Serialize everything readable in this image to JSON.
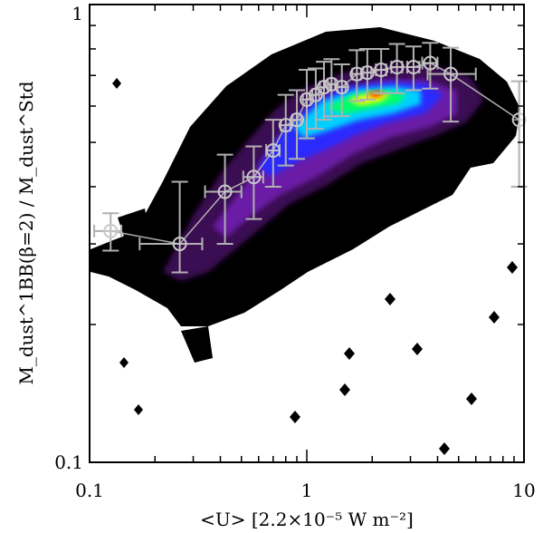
{
  "chart_data": {
    "type": "scatter",
    "title": "",
    "xlabel": "<U> [2.2×10⁻⁵ W m⁻²]",
    "ylabel": "M_dust^1BB(β=2) / M_dust^Std",
    "xscale": "log",
    "yscale": "log",
    "xlim": [
      0.1,
      10
    ],
    "ylim": [
      0.1,
      1
    ],
    "x_tick_labels": [
      "0.1",
      "1",
      "10"
    ],
    "y_tick_labels": [
      "0.1",
      "1"
    ],
    "grid": false,
    "legend": "none",
    "density_colors": [
      "#000000",
      "#3a0a52",
      "#6b1fa6",
      "#2a2aff",
      "#00d0ff",
      "#00ff66",
      "#ffff00",
      "#ff3300"
    ],
    "binned_series": {
      "name": "",
      "color": "#b0b0b0",
      "points": [
        {
          "x": 0.125,
          "y": 0.32,
          "x_err": [
            0.02,
            0.015
          ],
          "y_err": [
            0.03,
            0.03
          ]
        },
        {
          "x": 0.26,
          "y": 0.3,
          "x_err": [
            0.09,
            0.07
          ],
          "y_err": [
            0.04,
            0.11
          ]
        },
        {
          "x": 0.42,
          "y": 0.39,
          "x_err": [
            0.08,
            0.08
          ],
          "y_err": [
            0.09,
            0.08
          ]
        },
        {
          "x": 0.57,
          "y": 0.42,
          "x_err": [
            0.06,
            0.06
          ],
          "y_err": [
            0.08,
            0.07
          ]
        },
        {
          "x": 0.7,
          "y": 0.48,
          "x_err": [
            0.05,
            0.05
          ],
          "y_err": [
            0.08,
            0.08
          ]
        },
        {
          "x": 0.8,
          "y": 0.545,
          "x_err": [
            0.04,
            0.04
          ],
          "y_err": [
            0.1,
            0.09
          ]
        },
        {
          "x": 0.9,
          "y": 0.56,
          "x_err": [
            0.04,
            0.04
          ],
          "y_err": [
            0.1,
            0.09
          ]
        },
        {
          "x": 1.0,
          "y": 0.62,
          "x_err": [
            0.04,
            0.04
          ],
          "y_err": [
            0.11,
            0.1
          ]
        },
        {
          "x": 1.1,
          "y": 0.635,
          "x_err": [
            0.04,
            0.04
          ],
          "y_err": [
            0.1,
            0.09
          ]
        },
        {
          "x": 1.2,
          "y": 0.66,
          "x_err": [
            0.05,
            0.05
          ],
          "y_err": [
            0.1,
            0.09
          ]
        },
        {
          "x": 1.3,
          "y": 0.67,
          "x_err": [
            0.05,
            0.05
          ],
          "y_err": [
            0.1,
            0.09
          ]
        },
        {
          "x": 1.45,
          "y": 0.66,
          "x_err": [
            0.06,
            0.06
          ],
          "y_err": [
            0.09,
            0.08
          ]
        },
        {
          "x": 1.7,
          "y": 0.705,
          "x_err": [
            0.08,
            0.08
          ],
          "y_err": [
            0.09,
            0.09
          ]
        },
        {
          "x": 1.9,
          "y": 0.71,
          "x_err": [
            0.08,
            0.08
          ],
          "y_err": [
            0.09,
            0.09
          ]
        },
        {
          "x": 2.2,
          "y": 0.72,
          "x_err": [
            0.12,
            0.12
          ],
          "y_err": [
            0.08,
            0.08
          ]
        },
        {
          "x": 2.6,
          "y": 0.73,
          "x_err": [
            0.15,
            0.15
          ],
          "y_err": [
            0.09,
            0.09
          ]
        },
        {
          "x": 3.1,
          "y": 0.73,
          "x_err": [
            0.2,
            0.2
          ],
          "y_err": [
            0.08,
            0.08
          ]
        },
        {
          "x": 3.7,
          "y": 0.745,
          "x_err": [
            0.3,
            0.3
          ],
          "y_err": [
            0.09,
            0.08
          ]
        },
        {
          "x": 4.6,
          "y": 0.705,
          "x_err": [
            1.0,
            1.4
          ],
          "y_err": [
            0.15,
            0.1
          ]
        },
        {
          "x": 9.5,
          "y": 0.56,
          "x_err": [
            0.0,
            0.0
          ],
          "y_err": [
            0.16,
            0.12
          ]
        }
      ]
    }
  }
}
